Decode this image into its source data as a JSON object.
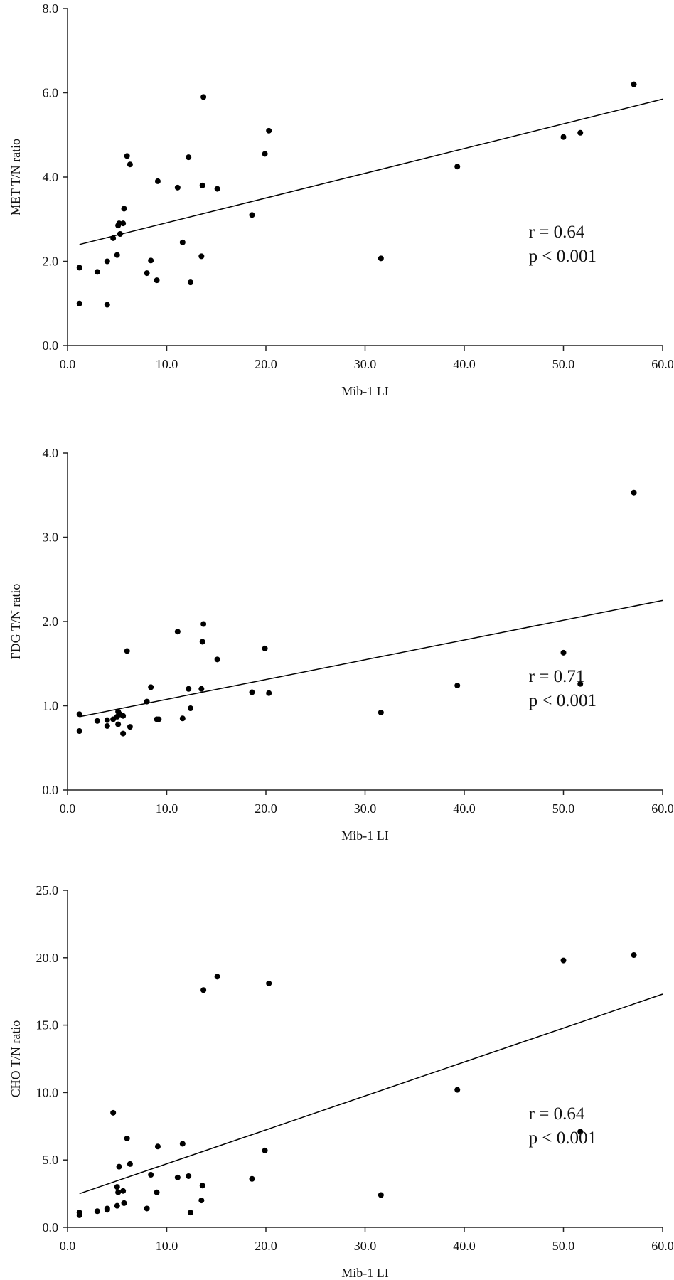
{
  "chart_data": [
    {
      "type": "scatter",
      "xlabel": "Mib-1 LI",
      "ylabel": "MET T/N ratio",
      "xlim": [
        0,
        60
      ],
      "ylim": [
        0,
        8
      ],
      "xticks": [
        "0.0",
        "10.0",
        "20.0",
        "30.0",
        "40.0",
        "50.0",
        "60.0"
      ],
      "yticks": [
        "0.0",
        "2.0",
        "4.0",
        "6.0",
        "8.0"
      ],
      "grid": false,
      "annotations": [
        "r = 0.64",
        "p < 0.001"
      ],
      "trend_line": [
        [
          1.2,
          2.4
        ],
        [
          60,
          5.85
        ]
      ],
      "points": [
        [
          1.2,
          1.85
        ],
        [
          1.2,
          1.0
        ],
        [
          3.0,
          1.75
        ],
        [
          4.0,
          2.0
        ],
        [
          4.0,
          0.97
        ],
        [
          4.6,
          2.55
        ],
        [
          5.0,
          2.15
        ],
        [
          5.1,
          2.85
        ],
        [
          5.2,
          2.9
        ],
        [
          5.3,
          2.65
        ],
        [
          5.6,
          2.9
        ],
        [
          5.7,
          3.25
        ],
        [
          6.0,
          4.5
        ],
        [
          6.3,
          4.3
        ],
        [
          8.0,
          1.72
        ],
        [
          8.4,
          2.02
        ],
        [
          9.0,
          1.55
        ],
        [
          9.1,
          3.9
        ],
        [
          11.1,
          3.75
        ],
        [
          11.6,
          2.45
        ],
        [
          12.2,
          4.47
        ],
        [
          12.4,
          1.5
        ],
        [
          13.5,
          2.12
        ],
        [
          13.6,
          3.8
        ],
        [
          13.7,
          5.9
        ],
        [
          15.1,
          3.72
        ],
        [
          18.6,
          3.1
        ],
        [
          19.9,
          4.55
        ],
        [
          20.3,
          5.1
        ],
        [
          31.6,
          2.07
        ],
        [
          39.3,
          4.25
        ],
        [
          50.0,
          4.95
        ],
        [
          51.7,
          5.05
        ],
        [
          57.1,
          6.2
        ]
      ]
    },
    {
      "type": "scatter",
      "xlabel": "Mib-1 LI",
      "ylabel": "FDG T/N ratio",
      "xlim": [
        0,
        60
      ],
      "ylim": [
        0,
        4
      ],
      "xticks": [
        "0.0",
        "10.0",
        "20.0",
        "30.0",
        "40.0",
        "50.0",
        "60.0"
      ],
      "yticks": [
        "0.0",
        "1.0",
        "2.0",
        "3.0",
        "4.0"
      ],
      "grid": false,
      "annotations": [
        "r = 0.71",
        "p < 0.001"
      ],
      "trend_line": [
        [
          1.2,
          0.87
        ],
        [
          60,
          2.25
        ]
      ],
      "points": [
        [
          1.2,
          0.9
        ],
        [
          1.2,
          0.7
        ],
        [
          3.0,
          0.82
        ],
        [
          4.0,
          0.83
        ],
        [
          4.0,
          0.76
        ],
        [
          4.6,
          0.84
        ],
        [
          5.0,
          0.87
        ],
        [
          5.1,
          0.93
        ],
        [
          5.1,
          0.78
        ],
        [
          5.3,
          0.9
        ],
        [
          5.6,
          0.88
        ],
        [
          5.6,
          0.67
        ],
        [
          6.0,
          1.65
        ],
        [
          6.3,
          0.75
        ],
        [
          8.0,
          1.05
        ],
        [
          8.4,
          1.22
        ],
        [
          9.0,
          0.84
        ],
        [
          9.2,
          0.84
        ],
        [
          11.1,
          1.88
        ],
        [
          11.6,
          0.85
        ],
        [
          12.2,
          1.2
        ],
        [
          12.4,
          0.97
        ],
        [
          13.5,
          1.2
        ],
        [
          13.6,
          1.76
        ],
        [
          13.7,
          1.97
        ],
        [
          15.1,
          1.55
        ],
        [
          18.6,
          1.16
        ],
        [
          19.9,
          1.68
        ],
        [
          20.3,
          1.15
        ],
        [
          31.6,
          0.92
        ],
        [
          39.3,
          1.24
        ],
        [
          50.0,
          1.63
        ],
        [
          51.7,
          1.26
        ],
        [
          57.1,
          3.53
        ]
      ]
    },
    {
      "type": "scatter",
      "xlabel": "Mib-1 LI",
      "ylabel": "CHO T/N ratio",
      "xlim": [
        0,
        60
      ],
      "ylim": [
        0,
        25
      ],
      "xticks": [
        "0.0",
        "10.0",
        "20.0",
        "30.0",
        "40.0",
        "50.0",
        "60.0"
      ],
      "yticks": [
        "0.0",
        "5.0",
        "10.0",
        "15.0",
        "20.0",
        "25.0"
      ],
      "grid": false,
      "annotations": [
        "r = 0.64",
        "p < 0.001"
      ],
      "trend_line": [
        [
          1.2,
          2.5
        ],
        [
          60,
          17.3
        ]
      ],
      "points": [
        [
          1.2,
          1.1
        ],
        [
          1.2,
          0.9
        ],
        [
          3.0,
          1.2
        ],
        [
          4.0,
          1.4
        ],
        [
          4.0,
          1.3
        ],
        [
          4.6,
          8.5
        ],
        [
          5.0,
          3.0
        ],
        [
          5.0,
          1.6
        ],
        [
          5.1,
          2.6
        ],
        [
          5.2,
          4.5
        ],
        [
          5.6,
          2.7
        ],
        [
          5.7,
          1.8
        ],
        [
          6.0,
          6.6
        ],
        [
          6.3,
          4.7
        ],
        [
          8.0,
          1.4
        ],
        [
          8.4,
          3.9
        ],
        [
          9.0,
          2.6
        ],
        [
          9.1,
          6.0
        ],
        [
          11.1,
          3.7
        ],
        [
          11.6,
          6.2
        ],
        [
          12.2,
          3.8
        ],
        [
          12.4,
          1.1
        ],
        [
          13.5,
          2.0
        ],
        [
          13.6,
          3.1
        ],
        [
          13.7,
          17.6
        ],
        [
          15.1,
          18.6
        ],
        [
          18.6,
          3.6
        ],
        [
          19.9,
          5.7
        ],
        [
          20.3,
          18.1
        ],
        [
          31.6,
          2.4
        ],
        [
          39.3,
          10.2
        ],
        [
          50.0,
          19.8
        ],
        [
          51.7,
          7.1
        ],
        [
          57.1,
          20.2
        ]
      ]
    }
  ]
}
